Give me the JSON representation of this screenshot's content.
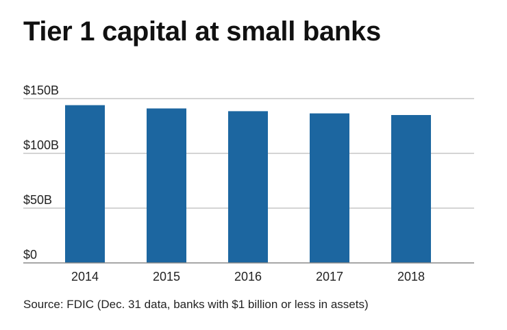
{
  "title": "Tier 1 capital at small banks",
  "source": "Source: FDIC (Dec. 31 data, banks with $1 billion or less in assets)",
  "colors": {
    "bar": "#1c66a0",
    "grid": "#aaaaaa",
    "axis": "#888888"
  },
  "chart_data": {
    "type": "bar",
    "categories": [
      "2014",
      "2015",
      "2016",
      "2017",
      "2018"
    ],
    "values": [
      144,
      141,
      138.5,
      136.5,
      135
    ],
    "ylim": [
      0,
      150
    ],
    "yticks": [
      {
        "value": 0,
        "label": "$0"
      },
      {
        "value": 50,
        "label": "$50B"
      },
      {
        "value": 100,
        "label": "$100B"
      },
      {
        "value": 150,
        "label": "$150B"
      }
    ],
    "grid": true,
    "legend": "none"
  }
}
